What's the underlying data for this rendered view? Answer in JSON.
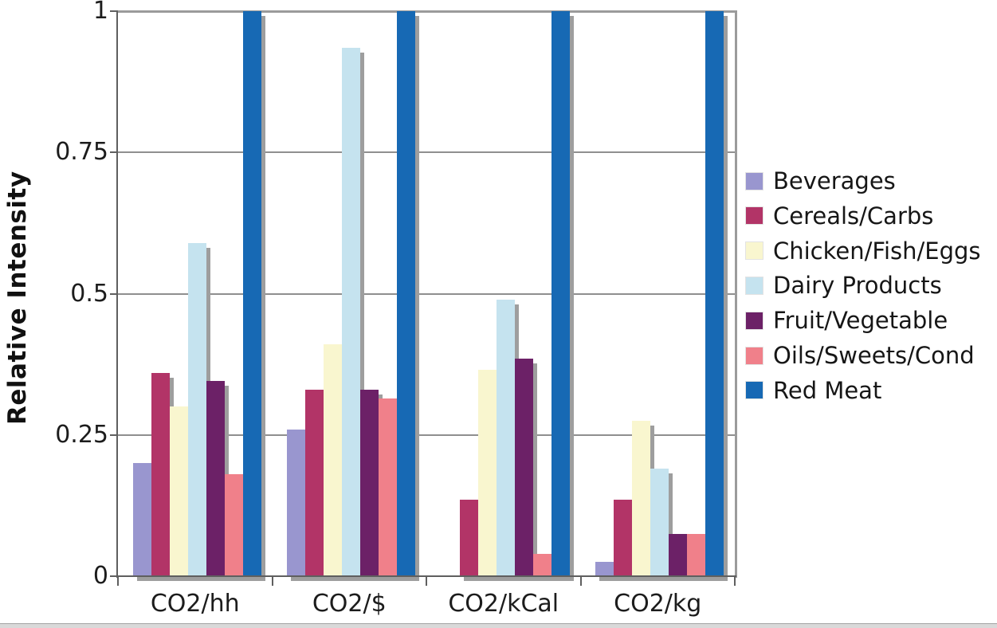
{
  "chart_data": {
    "type": "bar",
    "title": "",
    "xlabel": "",
    "ylabel": "Relative Intensity",
    "ylim": [
      0,
      1
    ],
    "grid": true,
    "legend_position": "right",
    "categories": [
      "CO2/hh",
      "CO2/$",
      "CO2/kCal",
      "CO2/kg"
    ],
    "y_ticks": [
      {
        "value": 1,
        "label": "1"
      },
      {
        "value": 0.75,
        "label": "0.75"
      },
      {
        "value": 0.5,
        "label": "0.5"
      },
      {
        "value": 0.25,
        "label": "0.25"
      },
      {
        "value": 0,
        "label": "0"
      }
    ],
    "series": [
      {
        "name": "Beverages",
        "color": "#9996cf",
        "values": [
          0.2,
          0.26,
          0,
          0.025
        ]
      },
      {
        "name": "Cereals/Carbs",
        "color": "#b23467",
        "values": [
          0.36,
          0.33,
          0.135,
          0.135
        ]
      },
      {
        "name": "Chicken/Fish/Eggs",
        "color": "#f9f6cf",
        "values": [
          0.3,
          0.41,
          0.365,
          0.275
        ]
      },
      {
        "name": "Dairy Products",
        "color": "#c5e3ef",
        "values": [
          0.59,
          0.935,
          0.49,
          0.19
        ]
      },
      {
        "name": "Fruit/Vegetable",
        "color": "#6c2167",
        "values": [
          0.345,
          0.33,
          0.385,
          0.075
        ]
      },
      {
        "name": "Oils/Sweets/Cond",
        "color": "#f0808a",
        "values": [
          0.18,
          0.315,
          0.04,
          0.075
        ]
      },
      {
        "name": "Red Meat",
        "color": "#1769b4",
        "values": [
          1,
          1,
          1,
          1
        ]
      }
    ]
  },
  "colors": {
    "gridline": "#8f8f8f",
    "plot_frame": "#9b9b9b",
    "axis": "#5f5f5f",
    "bar_shadow": "#9e9e9e",
    "text": "#1c1c1c"
  }
}
